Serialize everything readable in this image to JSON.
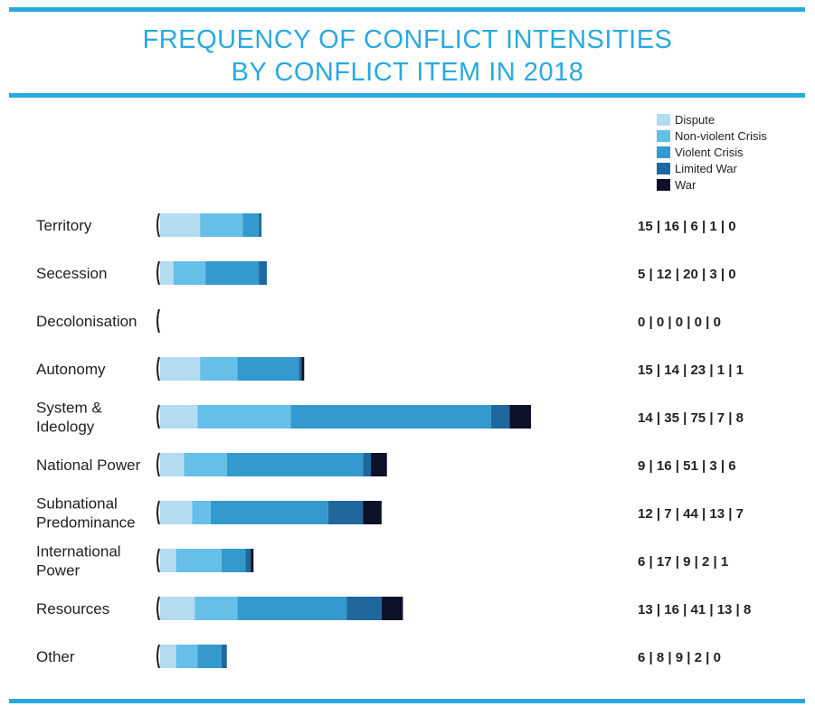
{
  "title_lines": [
    "FREQUENCY OF CONFLICT INTENSITIES",
    "BY CONFLICT ITEM IN 2018"
  ],
  "colors": {
    "rule": "#29a9e1",
    "title": "#29a9e1",
    "series": [
      "#b3dcf1",
      "#66bfe9",
      "#3499cd",
      "#1f679c",
      "#0d1128"
    ]
  },
  "chart_data": {
    "type": "bar",
    "orientation": "horizontal",
    "stacked": true,
    "title": "FREQUENCY OF CONFLICT INTENSITIES BY CONFLICT ITEM IN 2018",
    "legend_position": "top-right",
    "grid": false,
    "categories": [
      [
        "Territory"
      ],
      [
        "Secession"
      ],
      [
        "Decolonisation"
      ],
      [
        "Autonomy"
      ],
      [
        "System &",
        "Ideology"
      ],
      [
        "National Power"
      ],
      [
        "Subnational",
        "Predominance"
      ],
      [
        "International",
        "Power"
      ],
      [
        "Resources"
      ],
      [
        "Other"
      ]
    ],
    "series": [
      {
        "name": "Dispute",
        "values": [
          15,
          5,
          0,
          15,
          14,
          9,
          12,
          6,
          13,
          6
        ]
      },
      {
        "name": "Non-violent Crisis",
        "values": [
          16,
          12,
          0,
          14,
          35,
          16,
          7,
          17,
          16,
          8
        ]
      },
      {
        "name": "Violent Crisis",
        "values": [
          6,
          20,
          0,
          23,
          75,
          51,
          44,
          9,
          41,
          9
        ]
      },
      {
        "name": "Limited War",
        "values": [
          1,
          3,
          0,
          1,
          7,
          3,
          13,
          2,
          13,
          2
        ]
      },
      {
        "name": "War",
        "values": [
          0,
          0,
          0,
          1,
          8,
          6,
          7,
          1,
          8,
          0
        ]
      }
    ]
  }
}
